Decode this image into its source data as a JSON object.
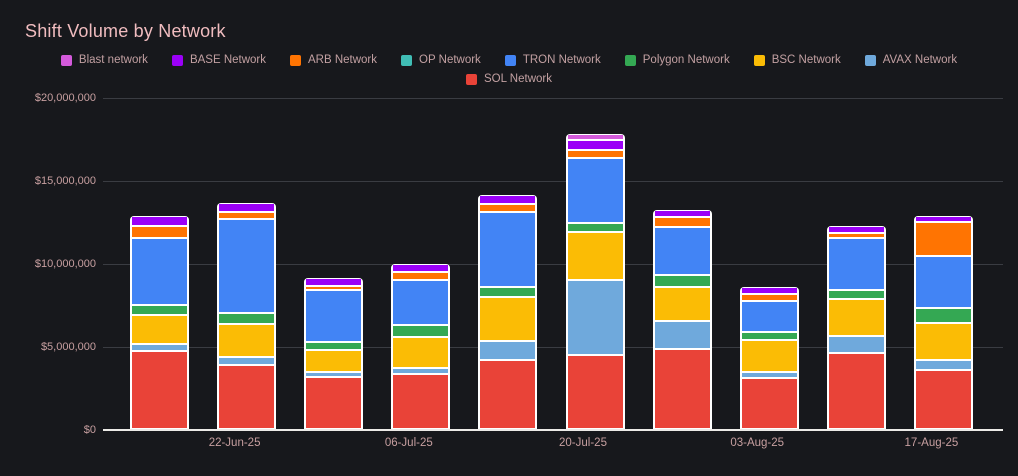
{
  "title": "Shift Volume by Network",
  "colors": {
    "background": "#17181c",
    "title_text": "#f0bcbf",
    "axis_text": "#c79fa0",
    "legend_text": "#c2a0a2",
    "gridline": "#3a3c42",
    "baseline": "#eceae7",
    "bar_border": "#ffffff"
  },
  "legend": {
    "rows": [
      [
        "blast",
        "base",
        "arb",
        "op",
        "tron",
        "polygon",
        "bsc",
        "avax"
      ],
      [
        "sol"
      ]
    ]
  },
  "chart_data": {
    "type": "bar",
    "stacked": true,
    "title": "Shift Volume by Network",
    "xlabel": "",
    "ylabel": "",
    "ylim": [
      0,
      20000000
    ],
    "grid": true,
    "legend_position": "top-center",
    "y_ticks": {
      "values": [
        0,
        5000000,
        10000000,
        15000000,
        20000000
      ],
      "labels": [
        "$0",
        "$5,000,000",
        "$10,000,000",
        "$15,000,000",
        "$20,000,000"
      ]
    },
    "categories": [
      "",
      "22-Jun-25",
      "",
      "06-Jul-25",
      "",
      "20-Jul-25",
      "",
      "03-Aug-25",
      "",
      "17-Aug-25"
    ],
    "series": [
      {
        "key": "sol",
        "name": "SOL Network",
        "color": "#e94338",
        "values": [
          4750000,
          3880000,
          3160000,
          3370000,
          4220000,
          4510000,
          4860000,
          3130000,
          4630000,
          3580000
        ]
      },
      {
        "key": "avax",
        "name": "AVAX Network",
        "color": "#6fa9dc",
        "values": [
          410000,
          510000,
          330000,
          340000,
          1100000,
          4490000,
          1680000,
          340000,
          990000,
          600000
        ]
      },
      {
        "key": "bsc",
        "name": "BSC Network",
        "color": "#fbbc05",
        "values": [
          1720000,
          1980000,
          1290000,
          1870000,
          2680000,
          2930000,
          2030000,
          1930000,
          2280000,
          2250000
        ]
      },
      {
        "key": "polygon",
        "name": "Polygon Network",
        "color": "#34a853",
        "values": [
          650000,
          660000,
          520000,
          700000,
          570000,
          550000,
          750000,
          500000,
          510000,
          920000
        ]
      },
      {
        "key": "tron",
        "name": "TRON Network",
        "color": "#4284f5",
        "values": [
          4000000,
          5670000,
          3140000,
          2760000,
          4550000,
          3880000,
          2910000,
          1860000,
          3140000,
          3110000
        ]
      },
      {
        "key": "op",
        "name": "OP Network",
        "color": "#40bdb5",
        "values": [
          0,
          0,
          0,
          0,
          0,
          0,
          0,
          0,
          0,
          0
        ]
      },
      {
        "key": "arb",
        "name": "ARB Network",
        "color": "#ff7402",
        "values": [
          770000,
          450000,
          240000,
          440000,
          470000,
          480000,
          600000,
          420000,
          320000,
          2070000
        ]
      },
      {
        "key": "base",
        "name": "BASE Network",
        "color": "#9b00f7",
        "values": [
          560000,
          530000,
          480000,
          480000,
          530000,
          650000,
          410000,
          420000,
          400000,
          330000
        ]
      },
      {
        "key": "blast",
        "name": "Blast network",
        "color": "#d45adb",
        "values": [
          0,
          0,
          0,
          0,
          0,
          360000,
          0,
          0,
          0,
          0
        ]
      }
    ]
  }
}
